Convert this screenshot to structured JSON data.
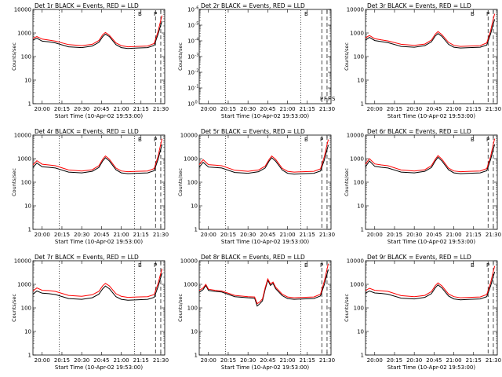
{
  "common": {
    "ylabel": "Counts/sec",
    "xlabel": "Start Time (10-Apr-02 19:53:00)",
    "xticks": [
      "20:00",
      "20:15",
      "20:30",
      "20:45",
      "21:00",
      "21:15",
      "21:30"
    ],
    "yticks_log": [
      "1",
      "10",
      "100",
      "1000",
      "10000"
    ],
    "yticks_tiny": [
      "10",
      "10",
      "10",
      "10",
      "10",
      "10",
      "10"
    ],
    "yticks_tiny_exp": [
      "0",
      "-1",
      "-2",
      "-3",
      "-4",
      "-5",
      "-6"
    ],
    "colors": {
      "events": "#000000",
      "lld": "#ff0000"
    }
  },
  "chart_data": [
    {
      "type": "line",
      "title": "Det 1r BLACK = Events, RED = LLD",
      "yscale": "log",
      "ylim": [
        1,
        10000
      ],
      "xlim": [
        "19:53",
        "21:33"
      ],
      "xticks": [
        "20:00",
        "20:15",
        "20:30",
        "20:45",
        "21:00",
        "21:15",
        "21:30"
      ],
      "markers": [
        "20:13",
        "21:10",
        "21:26",
        "21:30"
      ],
      "marker_labels": [
        "B",
        "P"
      ],
      "x": [
        "19:53",
        "19:56",
        "20:00",
        "20:05",
        "20:10",
        "20:20",
        "20:30",
        "20:38",
        "20:43",
        "20:46",
        "20:48",
        "20:51",
        "20:56",
        "21:00",
        "21:05",
        "21:12",
        "21:20",
        "21:25",
        "21:28",
        "21:30",
        "21:31"
      ],
      "series": [
        {
          "name": "Events",
          "values": [
            500,
            600,
            450,
            420,
            380,
            260,
            240,
            280,
            400,
            700,
            900,
            700,
            320,
            240,
            220,
            230,
            240,
            300,
            900,
            2200,
            3200
          ]
        },
        {
          "name": "LLD",
          "values": [
            600,
            700,
            550,
            500,
            450,
            320,
            290,
            330,
            480,
            850,
            1050,
            800,
            380,
            290,
            260,
            270,
            280,
            360,
            1200,
            3500,
            5500
          ]
        }
      ]
    },
    {
      "type": "line",
      "title": "Det 2r BLACK = Events, RED = LLD",
      "yscale": "log",
      "ylim": [
        1e-06,
        1
      ],
      "xlim": [
        "19:53",
        "21:33"
      ],
      "xticks": [
        "20:00",
        "20:15",
        "20:30",
        "20:45",
        "21:00",
        "21:15",
        "21:30"
      ],
      "markers": [
        "20:13",
        "21:10",
        "21:26",
        "21:30"
      ],
      "marker_labels": [
        "B",
        "P",
        "F",
        "F",
        "S"
      ],
      "x": [],
      "series": []
    },
    {
      "type": "line",
      "title": "Det 3r BLACK = Events, RED = LLD",
      "yscale": "log",
      "ylim": [
        1,
        10000
      ],
      "xlim": [
        "19:53",
        "21:33"
      ],
      "xticks": [
        "20:00",
        "20:15",
        "20:30",
        "20:45",
        "21:00",
        "21:15",
        "21:30"
      ],
      "markers": [
        "21:26",
        "21:30"
      ],
      "marker_labels": [
        "B",
        "P"
      ],
      "x": [
        "19:53",
        "19:56",
        "20:00",
        "20:05",
        "20:10",
        "20:20",
        "20:30",
        "20:38",
        "20:43",
        "20:46",
        "20:48",
        "20:51",
        "20:56",
        "21:00",
        "21:05",
        "21:12",
        "21:20",
        "21:25",
        "21:28",
        "21:30",
        "21:31"
      ],
      "series": [
        {
          "name": "Events",
          "values": [
            500,
            650,
            480,
            430,
            390,
            270,
            250,
            290,
            420,
            750,
            950,
            720,
            330,
            250,
            230,
            240,
            250,
            310,
            950,
            2500,
            3800
          ]
        },
        {
          "name": "LLD",
          "values": [
            620,
            780,
            570,
            510,
            460,
            330,
            300,
            340,
            500,
            900,
            1150,
            850,
            400,
            300,
            270,
            280,
            290,
            380,
            1300,
            4000,
            6500
          ]
        }
      ]
    },
    {
      "type": "line",
      "title": "Det 4r BLACK = Events, RED = LLD",
      "yscale": "log",
      "ylim": [
        1,
        10000
      ],
      "xlim": [
        "19:53",
        "21:33"
      ],
      "xticks": [
        "20:00",
        "20:15",
        "20:30",
        "20:45",
        "21:00",
        "21:15",
        "21:30"
      ],
      "markers": [
        "20:13",
        "21:10",
        "21:26",
        "21:30"
      ],
      "marker_labels": [
        "B",
        "P"
      ],
      "x": [
        "19:53",
        "19:56",
        "20:00",
        "20:05",
        "20:10",
        "20:20",
        "20:30",
        "20:38",
        "20:43",
        "20:46",
        "20:48",
        "20:51",
        "20:56",
        "21:00",
        "21:05",
        "21:12",
        "21:20",
        "21:25",
        "21:28",
        "21:30",
        "21:31"
      ],
      "series": [
        {
          "name": "Events",
          "values": [
            420,
            650,
            450,
            430,
            400,
            270,
            250,
            290,
            420,
            800,
            1100,
            800,
            340,
            250,
            230,
            240,
            250,
            310,
            950,
            2600,
            4000
          ]
        },
        {
          "name": "LLD",
          "values": [
            540,
            820,
            580,
            540,
            500,
            330,
            300,
            340,
            500,
            950,
            1300,
            950,
            400,
            300,
            280,
            290,
            300,
            380,
            1300,
            4200,
            7000
          ]
        }
      ]
    },
    {
      "type": "line",
      "title": "Det 5r BLACK = Events, RED = LLD",
      "yscale": "log",
      "ylim": [
        1,
        10000
      ],
      "xlim": [
        "19:53",
        "21:33"
      ],
      "xticks": [
        "20:00",
        "20:15",
        "20:30",
        "20:45",
        "21:00",
        "21:15",
        "21:30"
      ],
      "markers": [
        "20:13",
        "21:10",
        "21:26",
        "21:30"
      ],
      "marker_labels": [
        "B",
        "P"
      ],
      "x": [
        "19:53",
        "19:56",
        "20:00",
        "20:05",
        "20:10",
        "20:20",
        "20:30",
        "20:38",
        "20:43",
        "20:46",
        "20:48",
        "20:51",
        "20:56",
        "21:00",
        "21:05",
        "21:12",
        "21:20",
        "21:25",
        "21:28",
        "21:30",
        "21:31"
      ],
      "series": [
        {
          "name": "Events",
          "values": [
            430,
            700,
            440,
            420,
            400,
            260,
            240,
            280,
            400,
            780,
            1100,
            780,
            330,
            240,
            220,
            230,
            240,
            300,
            900,
            2500,
            3800
          ]
        },
        {
          "name": "LLD",
          "values": [
            560,
            900,
            560,
            530,
            500,
            320,
            290,
            330,
            480,
            920,
            1300,
            930,
            390,
            290,
            270,
            280,
            290,
            370,
            1250,
            4000,
            6500
          ]
        }
      ]
    },
    {
      "type": "line",
      "title": "Det 6r BLACK = Events, RED = LLD",
      "yscale": "log",
      "ylim": [
        1,
        10000
      ],
      "xlim": [
        "19:53",
        "21:33"
      ],
      "xticks": [
        "20:00",
        "20:15",
        "20:30",
        "20:45",
        "21:00",
        "21:15",
        "21:30"
      ],
      "markers": [
        "21:26",
        "21:30"
      ],
      "marker_labels": [
        "B",
        "P"
      ],
      "x": [
        "19:53",
        "19:56",
        "20:00",
        "20:05",
        "20:10",
        "20:20",
        "20:30",
        "20:38",
        "20:43",
        "20:46",
        "20:48",
        "20:51",
        "20:56",
        "21:00",
        "21:05",
        "21:12",
        "21:20",
        "21:25",
        "21:28",
        "21:30",
        "21:31"
      ],
      "series": [
        {
          "name": "Events",
          "values": [
            450,
            800,
            470,
            430,
            400,
            270,
            250,
            290,
            420,
            800,
            1150,
            800,
            340,
            250,
            230,
            240,
            250,
            310,
            950,
            2600,
            4000
          ]
        },
        {
          "name": "LLD",
          "values": [
            580,
            1000,
            600,
            540,
            500,
            330,
            300,
            340,
            500,
            950,
            1350,
            950,
            400,
            300,
            280,
            290,
            300,
            380,
            1300,
            4200,
            7000
          ]
        }
      ]
    },
    {
      "type": "line",
      "title": "Det 7r BLACK = Events, RED = LLD",
      "yscale": "log",
      "ylim": [
        1,
        10000
      ],
      "xlim": [
        "19:53",
        "21:33"
      ],
      "xticks": [
        "20:00",
        "20:15",
        "20:30",
        "20:45",
        "21:00",
        "21:15",
        "21:30"
      ],
      "markers": [
        "20:13",
        "21:10",
        "21:26",
        "21:30"
      ],
      "marker_labels": [
        "B",
        "P"
      ],
      "x": [
        "19:53",
        "19:56",
        "20:00",
        "20:05",
        "20:10",
        "20:20",
        "20:30",
        "20:38",
        "20:43",
        "20:46",
        "20:48",
        "20:51",
        "20:56",
        "21:00",
        "21:05",
        "21:12",
        "21:20",
        "21:25",
        "21:28",
        "21:30",
        "21:31"
      ],
      "series": [
        {
          "name": "Events",
          "values": [
            380,
            520,
            420,
            400,
            370,
            250,
            230,
            270,
            380,
            650,
            850,
            650,
            300,
            230,
            210,
            220,
            230,
            280,
            800,
            2000,
            3000
          ]
        },
        {
          "name": "LLD",
          "values": [
            520,
            700,
            560,
            540,
            500,
            340,
            310,
            360,
            500,
            870,
            1100,
            860,
            400,
            310,
            280,
            290,
            300,
            370,
            1100,
            3000,
            4500
          ]
        }
      ]
    },
    {
      "type": "line",
      "title": "Det 8r BLACK = Events, RED = LLD",
      "yscale": "log",
      "ylim": [
        1,
        10000
      ],
      "xlim": [
        "19:53",
        "21:33"
      ],
      "xticks": [
        "20:00",
        "20:15",
        "20:30",
        "20:45",
        "21:00",
        "21:15",
        "21:30"
      ],
      "markers": [
        "20:13",
        "21:10",
        "21:26",
        "21:30"
      ],
      "marker_labels": [
        "B",
        "P"
      ],
      "x": [
        "19:53",
        "19:56",
        "19:58",
        "20:00",
        "20:05",
        "20:10",
        "20:20",
        "20:30",
        "20:35",
        "20:37",
        "20:39",
        "20:41",
        "20:43",
        "20:45",
        "20:47",
        "20:49",
        "20:51",
        "20:56",
        "21:00",
        "21:05",
        "21:12",
        "21:20",
        "21:25",
        "21:28",
        "21:30",
        "21:31"
      ],
      "series": [
        {
          "name": "Events",
          "values": [
            450,
            600,
            900,
            550,
            500,
            470,
            300,
            270,
            260,
            120,
            150,
            200,
            600,
            1500,
            900,
            1100,
            650,
            330,
            250,
            230,
            240,
            250,
            320,
            1000,
            2800,
            4200
          ]
        },
        {
          "name": "LLD",
          "values": [
            550,
            700,
            1000,
            620,
            560,
            520,
            340,
            300,
            290,
            150,
            180,
            240,
            700,
            1700,
            1050,
            1250,
            750,
            380,
            290,
            270,
            280,
            290,
            380,
            1400,
            4500,
            7500
          ]
        }
      ]
    },
    {
      "type": "line",
      "title": "Det 9r BLACK = Events, RED = LLD",
      "yscale": "log",
      "ylim": [
        1,
        10000
      ],
      "xlim": [
        "19:53",
        "21:33"
      ],
      "xticks": [
        "20:00",
        "20:15",
        "20:30",
        "20:45",
        "21:00",
        "21:15",
        "21:30"
      ],
      "markers": [
        "21:26",
        "21:30"
      ],
      "marker_labels": [
        "B",
        "P"
      ],
      "x": [
        "19:53",
        "19:56",
        "20:00",
        "20:05",
        "20:10",
        "20:20",
        "20:30",
        "20:38",
        "20:43",
        "20:46",
        "20:48",
        "20:51",
        "20:56",
        "21:00",
        "21:05",
        "21:12",
        "21:20",
        "21:25",
        "21:28",
        "21:30",
        "21:31"
      ],
      "series": [
        {
          "name": "Events",
          "values": [
            420,
            520,
            430,
            410,
            380,
            260,
            240,
            280,
            400,
            720,
            950,
            700,
            320,
            240,
            220,
            230,
            240,
            300,
            880,
            2200,
            3400
          ]
        },
        {
          "name": "LLD",
          "values": [
            540,
            680,
            560,
            530,
            500,
            330,
            300,
            340,
            490,
            880,
            1150,
            860,
            390,
            300,
            270,
            280,
            290,
            370,
            1200,
            3600,
            6000
          ]
        }
      ]
    }
  ]
}
